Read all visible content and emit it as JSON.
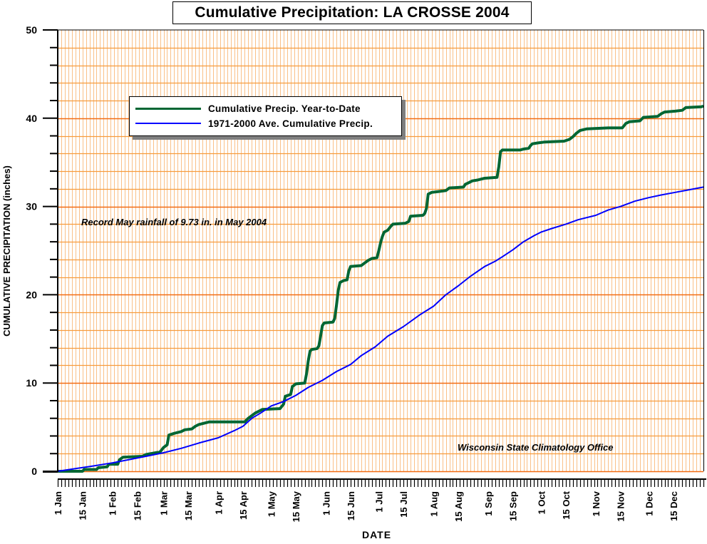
{
  "chart_data": {
    "type": "line",
    "title": "Cumulative Precipitation: LA CROSSE 2004",
    "xlabel": "DATE",
    "ylabel": "CUMULATIVE PRECIPITATION (inches)",
    "ylim": [
      0,
      50
    ],
    "xlim_days": [
      0,
      366
    ],
    "y_ticks": [
      0,
      10,
      20,
      30,
      40,
      50
    ],
    "y_minor_step": 2,
    "grid": true,
    "legend_position": "upper-left",
    "x_ticks": [
      {
        "label": "1 Jan",
        "day": 0
      },
      {
        "label": "15 Jan",
        "day": 14
      },
      {
        "label": "1 Feb",
        "day": 31
      },
      {
        "label": "15 Feb",
        "day": 45
      },
      {
        "label": "1 Mar",
        "day": 60
      },
      {
        "label": "15 Mar",
        "day": 74
      },
      {
        "label": "1 Apr",
        "day": 91
      },
      {
        "label": "15 Apr",
        "day": 105
      },
      {
        "label": "1 May",
        "day": 121
      },
      {
        "label": "15 May",
        "day": 135
      },
      {
        "label": "1 Jun",
        "day": 152
      },
      {
        "label": "15 Jun",
        "day": 166
      },
      {
        "label": "1 Jul",
        "day": 182
      },
      {
        "label": "15 Jul",
        "day": 196
      },
      {
        "label": "1 Aug",
        "day": 213
      },
      {
        "label": "15 Aug",
        "day": 227
      },
      {
        "label": "1 Sep",
        "day": 244
      },
      {
        "label": "15 Sep",
        "day": 258
      },
      {
        "label": "1 Oct",
        "day": 274
      },
      {
        "label": "15 Oct",
        "day": 288
      },
      {
        "label": "1 Nov",
        "day": 305
      },
      {
        "label": "15 Nov",
        "day": 319
      },
      {
        "label": "1 Dec",
        "day": 335
      },
      {
        "label": "15 Dec",
        "day": 349
      }
    ],
    "series": [
      {
        "name": "Cumulative Precip. Year-to-Date",
        "color": "#006633",
        "points": [
          [
            0,
            0
          ],
          [
            14,
            0
          ],
          [
            15,
            0.2
          ],
          [
            22,
            0.2
          ],
          [
            23,
            0.4
          ],
          [
            28,
            0.5
          ],
          [
            29,
            0.8
          ],
          [
            34,
            0.8
          ],
          [
            35,
            1.3
          ],
          [
            37,
            1.6
          ],
          [
            48,
            1.7
          ],
          [
            50,
            1.9
          ],
          [
            58,
            2.2
          ],
          [
            60,
            2.7
          ],
          [
            62,
            3.0
          ],
          [
            63,
            4.1
          ],
          [
            66,
            4.3
          ],
          [
            70,
            4.5
          ],
          [
            72,
            4.7
          ],
          [
            76,
            4.8
          ],
          [
            78,
            5.1
          ],
          [
            80,
            5.3
          ],
          [
            84,
            5.5
          ],
          [
            86,
            5.6
          ],
          [
            106,
            5.6
          ],
          [
            108,
            6.0
          ],
          [
            110,
            6.3
          ],
          [
            112,
            6.6
          ],
          [
            114,
            6.8
          ],
          [
            116,
            7.0
          ],
          [
            126,
            7.1
          ],
          [
            128,
            7.6
          ],
          [
            129,
            8.5
          ],
          [
            132,
            8.7
          ],
          [
            133,
            9.6
          ],
          [
            135,
            9.9
          ],
          [
            140,
            10.0
          ],
          [
            141,
            11.0
          ],
          [
            142,
            12.5
          ],
          [
            143,
            13.6
          ],
          [
            144,
            13.8
          ],
          [
            147,
            13.9
          ],
          [
            148,
            14.2
          ],
          [
            149,
            15.3
          ],
          [
            150,
            16.5
          ],
          [
            151,
            16.8
          ],
          [
            156,
            16.9
          ],
          [
            157,
            17.3
          ],
          [
            158,
            18.8
          ],
          [
            159,
            20.5
          ],
          [
            160,
            21.4
          ],
          [
            162,
            21.6
          ],
          [
            164,
            21.7
          ],
          [
            165,
            22.7
          ],
          [
            166,
            23.2
          ],
          [
            172,
            23.3
          ],
          [
            174,
            23.6
          ],
          [
            176,
            23.9
          ],
          [
            178,
            24.1
          ],
          [
            181,
            24.2
          ],
          [
            182,
            25.0
          ],
          [
            183,
            25.9
          ],
          [
            184,
            26.6
          ],
          [
            185,
            27.1
          ],
          [
            187,
            27.3
          ],
          [
            189,
            27.8
          ],
          [
            190,
            28.0
          ],
          [
            197,
            28.1
          ],
          [
            199,
            28.3
          ],
          [
            200,
            28.9
          ],
          [
            207,
            29.0
          ],
          [
            208,
            29.2
          ],
          [
            209,
            29.8
          ],
          [
            210,
            31.4
          ],
          [
            212,
            31.6
          ],
          [
            216,
            31.7
          ],
          [
            220,
            31.8
          ],
          [
            222,
            32.1
          ],
          [
            230,
            32.2
          ],
          [
            231,
            32.5
          ],
          [
            233,
            32.7
          ],
          [
            235,
            32.9
          ],
          [
            238,
            33.0
          ],
          [
            240,
            33.1
          ],
          [
            242,
            33.2
          ],
          [
            249,
            33.3
          ],
          [
            250,
            34.5
          ],
          [
            251,
            36.2
          ],
          [
            252,
            36.4
          ],
          [
            262,
            36.4
          ],
          [
            264,
            36.5
          ],
          [
            267,
            36.6
          ],
          [
            268,
            36.9
          ],
          [
            269,
            37.1
          ],
          [
            272,
            37.2
          ],
          [
            276,
            37.3
          ],
          [
            287,
            37.4
          ],
          [
            290,
            37.6
          ],
          [
            292,
            37.9
          ],
          [
            294,
            38.3
          ],
          [
            296,
            38.6
          ],
          [
            300,
            38.8
          ],
          [
            312,
            38.9
          ],
          [
            320,
            38.9
          ],
          [
            322,
            39.4
          ],
          [
            324,
            39.6
          ],
          [
            330,
            39.7
          ],
          [
            332,
            40.1
          ],
          [
            340,
            40.2
          ],
          [
            342,
            40.5
          ],
          [
            344,
            40.7
          ],
          [
            350,
            40.8
          ],
          [
            354,
            40.9
          ],
          [
            356,
            41.2
          ],
          [
            365,
            41.3
          ],
          [
            366,
            41.4
          ]
        ]
      },
      {
        "name": "1971-2000 Ave. Cumulative Precip.",
        "color": "#0000ff",
        "points": [
          [
            0,
            0
          ],
          [
            10,
            0.3
          ],
          [
            20,
            0.6
          ],
          [
            31,
            0.95
          ],
          [
            40,
            1.3
          ],
          [
            50,
            1.7
          ],
          [
            60,
            2.1
          ],
          [
            70,
            2.6
          ],
          [
            80,
            3.2
          ],
          [
            91,
            3.8
          ],
          [
            100,
            4.6
          ],
          [
            105,
            5.1
          ],
          [
            110,
            6.0
          ],
          [
            115,
            6.6
          ],
          [
            121,
            7.4
          ],
          [
            128,
            7.9
          ],
          [
            135,
            8.6
          ],
          [
            142,
            9.5
          ],
          [
            150,
            10.3
          ],
          [
            158,
            11.3
          ],
          [
            166,
            12.1
          ],
          [
            172,
            13.1
          ],
          [
            180,
            14.1
          ],
          [
            187,
            15.3
          ],
          [
            196,
            16.4
          ],
          [
            205,
            17.7
          ],
          [
            213,
            18.7
          ],
          [
            220,
            20.0
          ],
          [
            227,
            21.0
          ],
          [
            234,
            22.1
          ],
          [
            242,
            23.2
          ],
          [
            248,
            23.8
          ],
          [
            252,
            24.3
          ],
          [
            258,
            25.1
          ],
          [
            264,
            26.0
          ],
          [
            270,
            26.7
          ],
          [
            274,
            27.1
          ],
          [
            280,
            27.5
          ],
          [
            288,
            28.0
          ],
          [
            295,
            28.5
          ],
          [
            305,
            29.0
          ],
          [
            312,
            29.6
          ],
          [
            319,
            30.0
          ],
          [
            327,
            30.6
          ],
          [
            335,
            31.0
          ],
          [
            342,
            31.3
          ],
          [
            350,
            31.6
          ],
          [
            358,
            31.9
          ],
          [
            366,
            32.2
          ]
        ]
      }
    ],
    "annotations": [
      {
        "text": "Record May rainfall of 9.73 in. in May 2004",
        "position": "upper-left"
      },
      {
        "text": "Wisconsin State Climatology Office",
        "position": "lower-right"
      }
    ]
  },
  "colors": {
    "background": "#ffffff",
    "plot_background": "#ffffff",
    "minor_vgrid": "#f9c088",
    "hgrid": "#f79b3c",
    "hgrid_major": "#f26b12",
    "axis": "#000000"
  }
}
